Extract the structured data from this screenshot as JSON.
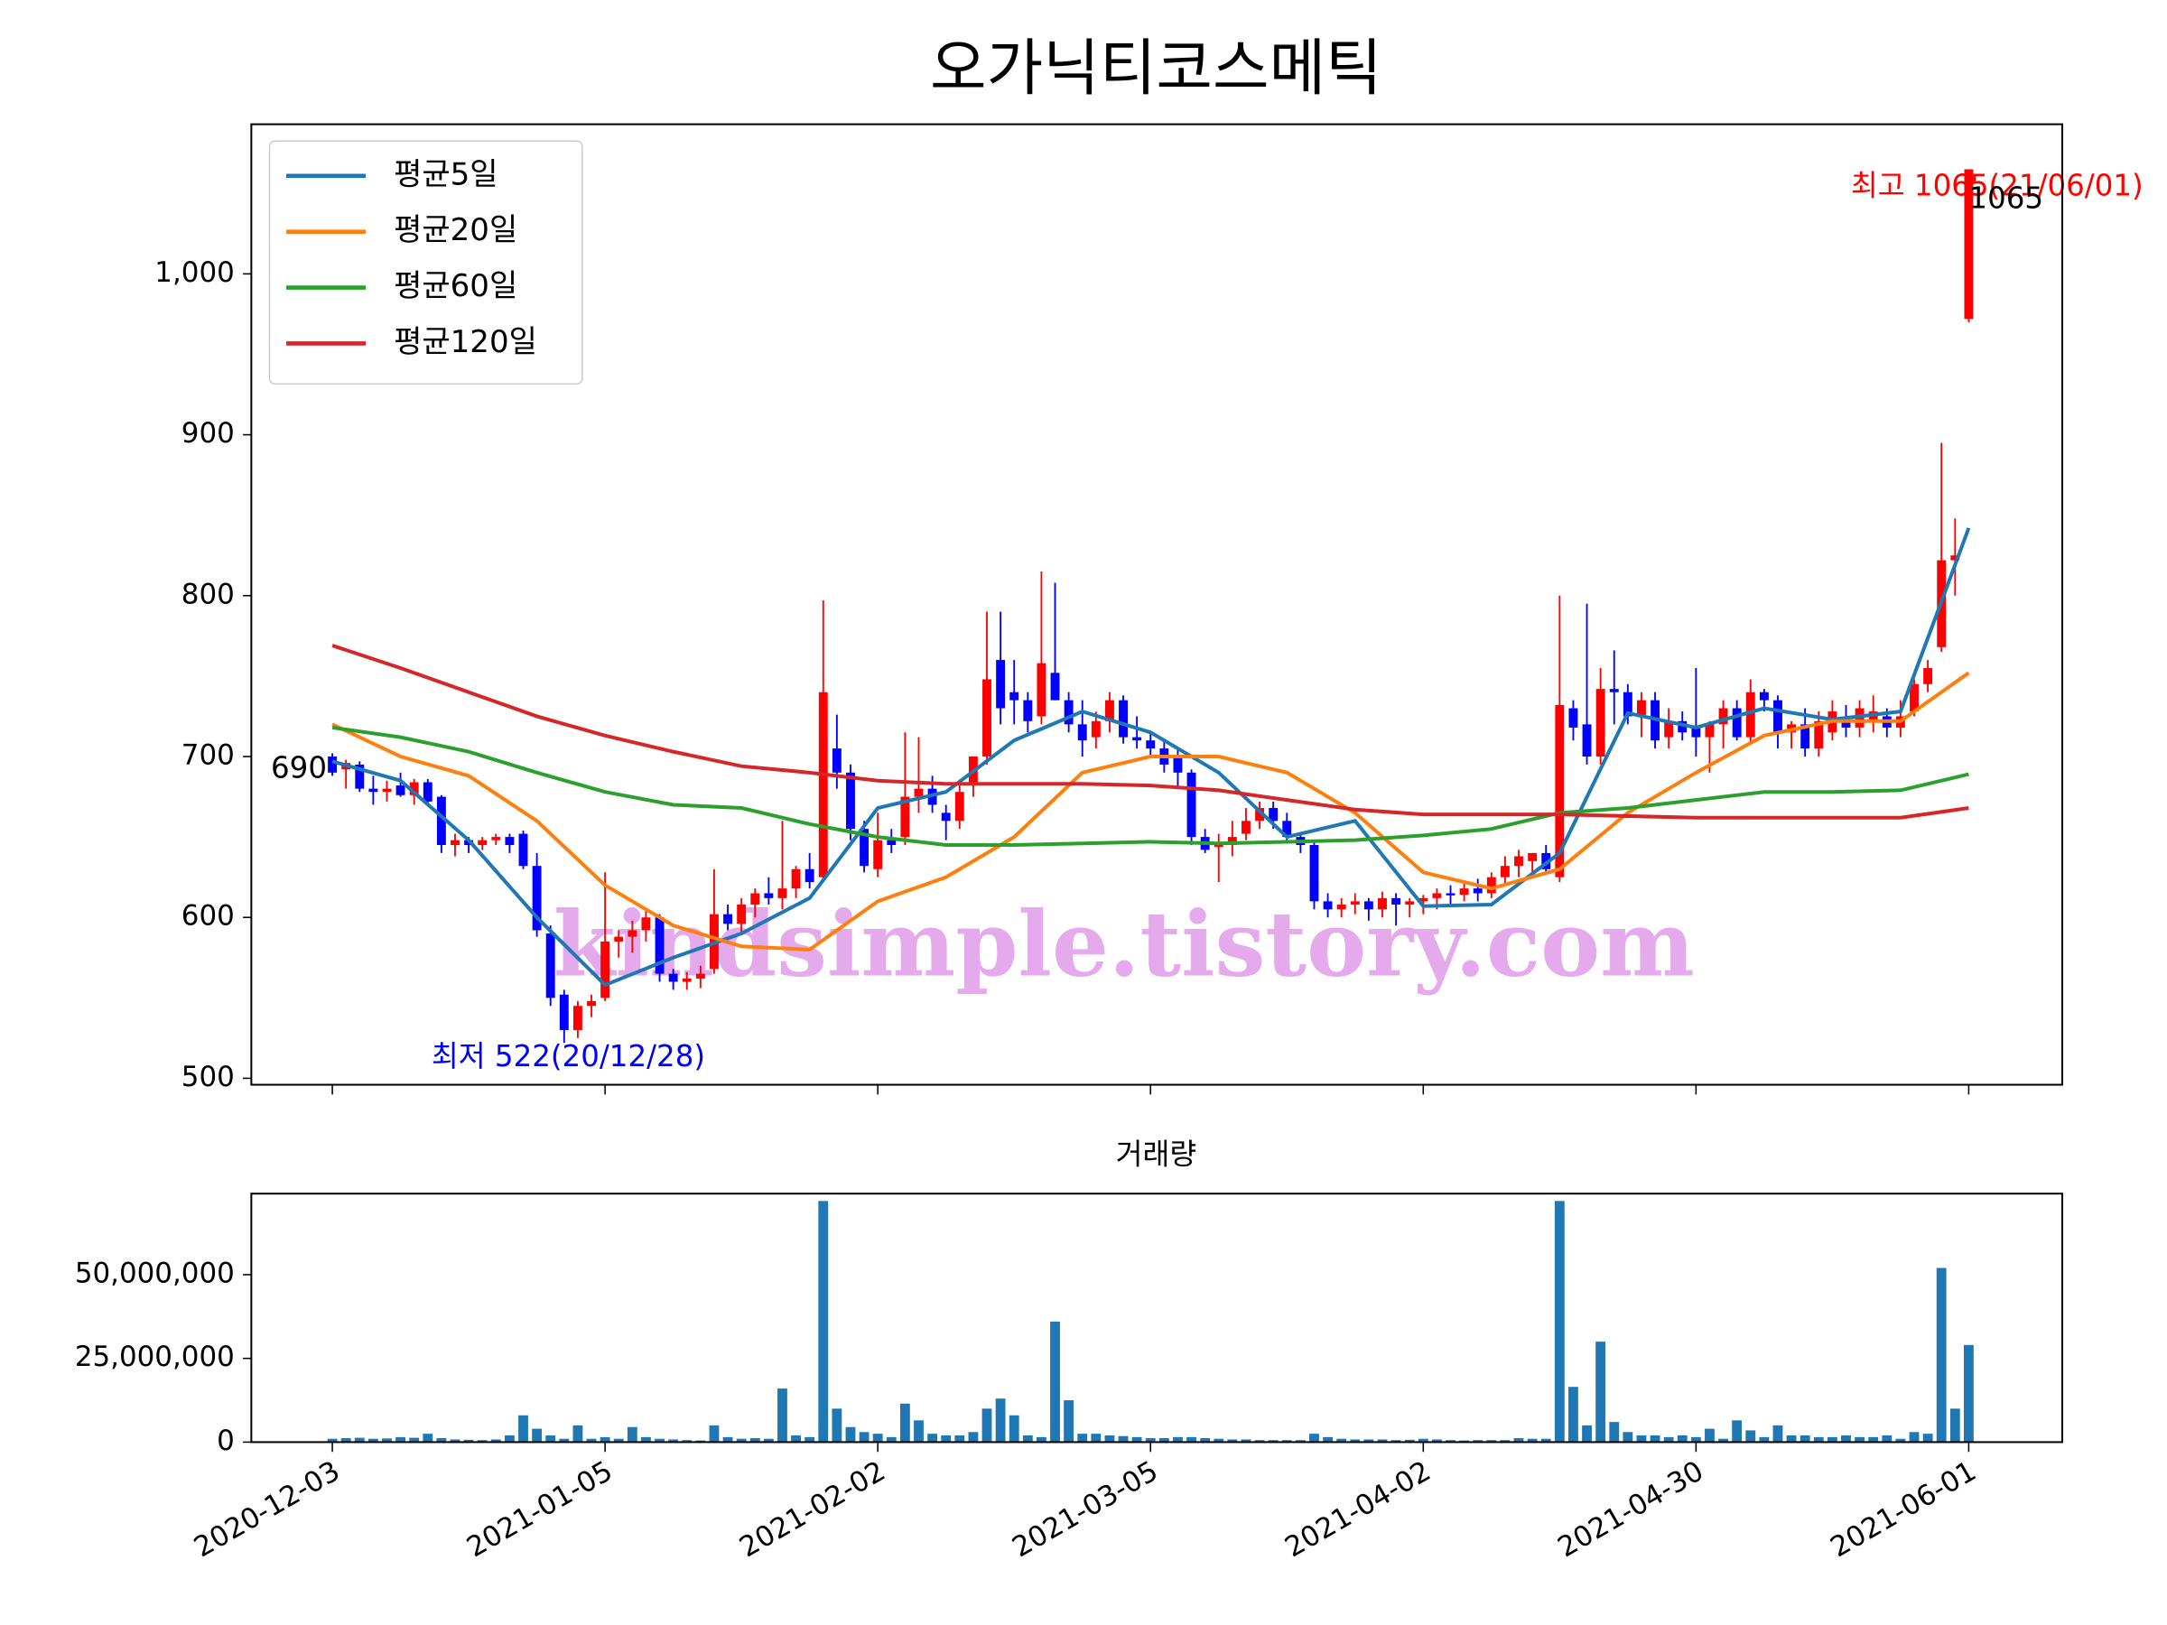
{
  "title": "오가닉티코스메틱",
  "watermark": "kindsimple.tistory.com",
  "chart_data": [
    {
      "type": "candlestick",
      "ylim": [
        496,
        1093
      ],
      "yticks": [
        500,
        600,
        700,
        800,
        900,
        {
          "value": 1000,
          "label": "1,000"
        }
      ],
      "xlim": [
        -5.94,
        126.86
      ],
      "up_color": "#ff0000",
      "down_color": "#0000ff",
      "legend": "upper left",
      "annotations": {
        "high": "최고 1065(21/06/01)",
        "low": "최저 522(20/12/28)"
      },
      "open": [
        700,
        692,
        695,
        680,
        678,
        682,
        676,
        684,
        675,
        645,
        648,
        645,
        648,
        650,
        652,
        632,
        590,
        552,
        530,
        545,
        550,
        585,
        588,
        592,
        600,
        565,
        560,
        562,
        568,
        602,
        596,
        608,
        615,
        612,
        618,
        630,
        625,
        705,
        690,
        655,
        630,
        648,
        650,
        675,
        680,
        665,
        660,
        682,
        700,
        760,
        740,
        735,
        725,
        752,
        735,
        720,
        712,
        722,
        735,
        712,
        710,
        705,
        700,
        690,
        650,
        645,
        645,
        652,
        660,
        668,
        660,
        650,
        645,
        610,
        605,
        608,
        610,
        605,
        612,
        608,
        610,
        612,
        615,
        614,
        618,
        615,
        625,
        632,
        635,
        640,
        625,
        730,
        720,
        700,
        742,
        740,
        725,
        735,
        712,
        722,
        718,
        712,
        720,
        730,
        712,
        740,
        735,
        715,
        720,
        705,
        715,
        722,
        718,
        722,
        725,
        718,
        728,
        745,
        768,
        822,
        972
      ],
      "high": [
        702,
        698,
        697,
        688,
        685,
        690,
        686,
        686,
        676,
        652,
        650,
        650,
        652,
        652,
        654,
        640,
        595,
        555,
        548,
        552,
        628,
        592,
        598,
        605,
        602,
        568,
        566,
        570,
        630,
        608,
        612,
        618,
        625,
        660,
        632,
        640,
        797,
        726,
        695,
        660,
        665,
        655,
        715,
        712,
        688,
        670,
        682,
        700,
        790,
        790,
        760,
        740,
        815,
        808,
        740,
        735,
        728,
        740,
        738,
        725,
        716,
        710,
        705,
        692,
        655,
        652,
        660,
        668,
        672,
        672,
        665,
        652,
        648,
        615,
        612,
        615,
        612,
        616,
        615,
        612,
        614,
        618,
        620,
        622,
        624,
        628,
        638,
        642,
        640,
        645,
        800,
        735,
        795,
        755,
        766,
        745,
        740,
        740,
        730,
        728,
        755,
        722,
        735,
        735,
        748,
        742,
        738,
        722,
        730,
        728,
        735,
        732,
        735,
        738,
        730,
        735,
        748,
        760,
        895,
        848,
        1065
      ],
      "low": [
        688,
        680,
        678,
        670,
        672,
        675,
        670,
        670,
        640,
        638,
        640,
        642,
        645,
        640,
        630,
        588,
        545,
        522,
        525,
        538,
        548,
        575,
        578,
        585,
        560,
        555,
        555,
        556,
        565,
        592,
        590,
        600,
        608,
        605,
        612,
        618,
        622,
        680,
        648,
        628,
        625,
        640,
        645,
        665,
        665,
        648,
        655,
        675,
        695,
        720,
        720,
        715,
        720,
        735,
        715,
        700,
        705,
        715,
        708,
        705,
        700,
        690,
        680,
        645,
        640,
        622,
        638,
        648,
        655,
        655,
        648,
        640,
        605,
        600,
        600,
        602,
        598,
        600,
        595,
        600,
        602,
        605,
        608,
        610,
        610,
        612,
        620,
        625,
        625,
        628,
        622,
        710,
        695,
        695,
        720,
        720,
        712,
        705,
        705,
        710,
        700,
        690,
        705,
        710,
        708,
        728,
        705,
        705,
        700,
        700,
        710,
        712,
        712,
        715,
        712,
        712,
        725,
        740,
        765,
        800,
        970
      ],
      "close": [
        690,
        696,
        680,
        678,
        680,
        676,
        684,
        672,
        645,
        648,
        645,
        648,
        650,
        645,
        632,
        592,
        550,
        530,
        545,
        548,
        585,
        588,
        592,
        600,
        565,
        560,
        562,
        565,
        602,
        596,
        608,
        615,
        612,
        618,
        630,
        622,
        740,
        690,
        655,
        632,
        648,
        645,
        675,
        680,
        670,
        660,
        678,
        700,
        748,
        730,
        735,
        722,
        758,
        735,
        720,
        710,
        722,
        735,
        712,
        710,
        705,
        695,
        690,
        650,
        642,
        645,
        650,
        660,
        668,
        660,
        650,
        645,
        610,
        605,
        608,
        610,
        605,
        612,
        608,
        610,
        612,
        615,
        614,
        618,
        615,
        625,
        632,
        638,
        640,
        630,
        732,
        718,
        700,
        742,
        740,
        725,
        735,
        710,
        722,
        715,
        712,
        720,
        730,
        712,
        740,
        735,
        715,
        720,
        705,
        722,
        728,
        718,
        730,
        728,
        718,
        725,
        745,
        755,
        822,
        825,
        1065
      ],
      "series": [
        {
          "name": "평균5일",
          "color": "#1f77b4",
          "x": [
            0,
            5,
            10,
            15,
            20,
            25,
            30,
            35,
            40,
            45,
            50,
            55,
            60,
            65,
            70,
            75,
            80,
            85,
            90,
            95,
            100,
            105,
            110,
            115,
            120
          ],
          "values": [
            697,
            685,
            648,
            600,
            558,
            575,
            590,
            612,
            668,
            678,
            710,
            728,
            715,
            690,
            650,
            660,
            607,
            608,
            640,
            727,
            718,
            730,
            723,
            728,
            842
          ]
        },
        {
          "name": "평균20일",
          "color": "#ff7f0e",
          "x": [
            0,
            5,
            10,
            15,
            20,
            25,
            30,
            35,
            40,
            45,
            50,
            55,
            60,
            65,
            70,
            75,
            80,
            85,
            90,
            95,
            100,
            105,
            110,
            115,
            120
          ],
          "values": [
            720,
            700,
            688,
            660,
            620,
            595,
            582,
            580,
            610,
            625,
            650,
            690,
            700,
            700,
            690,
            665,
            628,
            618,
            630,
            665,
            690,
            713,
            722,
            722,
            752
          ]
        },
        {
          "name": "평균60일",
          "color": "#2ca02c",
          "x": [
            0,
            5,
            10,
            15,
            20,
            25,
            30,
            35,
            40,
            45,
            50,
            55,
            60,
            65,
            70,
            75,
            80,
            85,
            90,
            95,
            100,
            105,
            110,
            115,
            120
          ],
          "values": [
            718,
            712,
            703,
            690,
            678,
            670,
            668,
            658,
            650,
            645,
            645,
            646,
            647,
            646,
            647,
            648,
            651,
            655,
            665,
            668,
            673,
            678,
            678,
            679,
            689
          ]
        },
        {
          "name": "평균120일",
          "color": "#d62728",
          "x": [
            0,
            5,
            10,
            15,
            20,
            25,
            30,
            35,
            40,
            45,
            50,
            55,
            60,
            65,
            70,
            75,
            80,
            85,
            90,
            95,
            100,
            105,
            110,
            115,
            120
          ],
          "values": [
            769,
            755,
            740,
            725,
            713,
            703,
            694,
            690,
            685,
            683,
            683,
            683,
            682,
            679,
            673,
            667,
            664,
            664,
            664,
            663,
            662,
            662,
            662,
            662,
            668
          ]
        }
      ]
    },
    {
      "type": "bar",
      "title": "거래량",
      "color": "#1f77b4",
      "ylim": [
        0,
        74200000
      ],
      "yticks": [
        0,
        {
          "value": 25000000,
          "label": "25,000,000"
        },
        {
          "value": 50000000,
          "label": "50,000,000"
        }
      ],
      "xlim": [
        -5.94,
        126.86
      ],
      "xticks": [
        {
          "value": 0,
          "label": "2020-12-03"
        },
        {
          "value": 20,
          "label": "2021-01-05"
        },
        {
          "value": 40,
          "label": "2021-02-02"
        },
        {
          "value": 60,
          "label": "2021-03-05"
        },
        {
          "value": 80,
          "label": "2021-04-02"
        },
        {
          "value": 100,
          "label": "2021-04-30"
        },
        {
          "value": 120,
          "label": "2021-06-01"
        }
      ],
      "values": [
        1000000,
        1200000,
        1300000,
        1000000,
        1100000,
        1500000,
        1300000,
        2500000,
        1200000,
        800000,
        700000,
        600000,
        800000,
        2000000,
        8000000,
        4000000,
        2000000,
        1000000,
        5000000,
        1000000,
        1500000,
        1000000,
        4500000,
        1500000,
        1000000,
        800000,
        600000,
        500000,
        5000000,
        1500000,
        1000000,
        1200000,
        1000000,
        16000000,
        2000000,
        1500000,
        72000000,
        10000000,
        4500000,
        3000000,
        2500000,
        1500000,
        11500000,
        6500000,
        2500000,
        2000000,
        2000000,
        3000000,
        10000000,
        13000000,
        8000000,
        2000000,
        1500000,
        36000000,
        12500000,
        2500000,
        2500000,
        2000000,
        1800000,
        1500000,
        1200000,
        1200000,
        1500000,
        1500000,
        1200000,
        1000000,
        800000,
        800000,
        600000,
        600000,
        600000,
        600000,
        2500000,
        1500000,
        1000000,
        800000,
        800000,
        800000,
        600000,
        700000,
        1000000,
        800000,
        600000,
        500000,
        600000,
        600000,
        600000,
        1200000,
        1000000,
        1000000,
        72000000,
        16500000,
        5000000,
        30000000,
        6000000,
        3000000,
        2000000,
        2000000,
        1500000,
        2000000,
        1500000,
        4000000,
        1000000,
        6500000,
        3500000,
        1500000,
        5000000,
        2000000,
        2000000,
        1500000,
        1500000,
        2000000,
        1500000,
        1500000,
        2000000,
        1000000,
        3000000,
        2500000,
        52000000,
        10000000,
        29000000
      ]
    }
  ]
}
